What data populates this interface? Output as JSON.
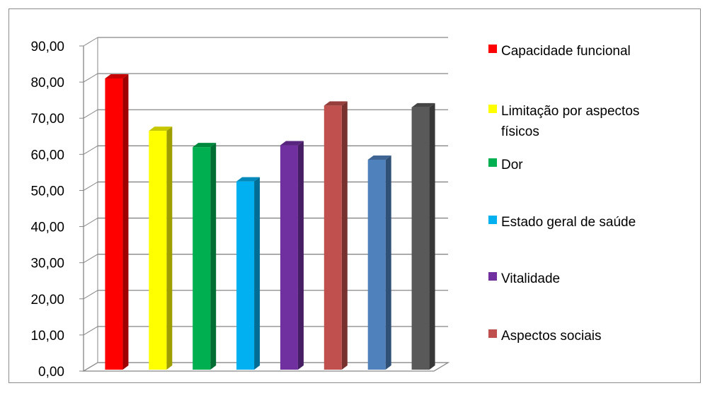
{
  "chart_data": {
    "type": "bar",
    "title": "",
    "xlabel": "",
    "ylabel": "",
    "ylim": [
      0,
      90
    ],
    "y_ticks": [
      "0,00",
      "10,00",
      "20,00",
      "30,00",
      "40,00",
      "50,00",
      "60,00",
      "70,00",
      "80,00",
      "90,00"
    ],
    "grid": true,
    "legend_position": "right",
    "style": "3d-column",
    "categories": [
      "Capacidade funcional",
      "Limitação por aspectos físicos",
      "Dor",
      "Estado geral de saúde",
      "Vitalidade",
      "Aspectos sociais",
      "",
      ""
    ],
    "values": [
      81.0,
      66.5,
      62.0,
      52.5,
      62.5,
      73.5,
      58.5,
      73.0
    ],
    "colors": [
      "#ff0000",
      "#ffff00",
      "#00b050",
      "#00b0f0",
      "#7030a0",
      "#c0504d",
      "#4f81bd",
      "#595959"
    ]
  },
  "legend": {
    "items": [
      {
        "label_lines": [
          "Capacidade funcional"
        ],
        "color": "#ff0000"
      },
      {
        "label_lines": [
          "Limitação por aspectos",
          "físicos"
        ],
        "color": "#ffff00"
      },
      {
        "label_lines": [
          "Dor"
        ],
        "color": "#00b050"
      },
      {
        "label_lines": [
          "Estado geral de saúde"
        ],
        "color": "#00b0f0"
      },
      {
        "label_lines": [
          "Vitalidade"
        ],
        "color": "#7030a0"
      },
      {
        "label_lines": [
          "Aspectos sociais"
        ],
        "color": "#c0504d"
      }
    ]
  }
}
